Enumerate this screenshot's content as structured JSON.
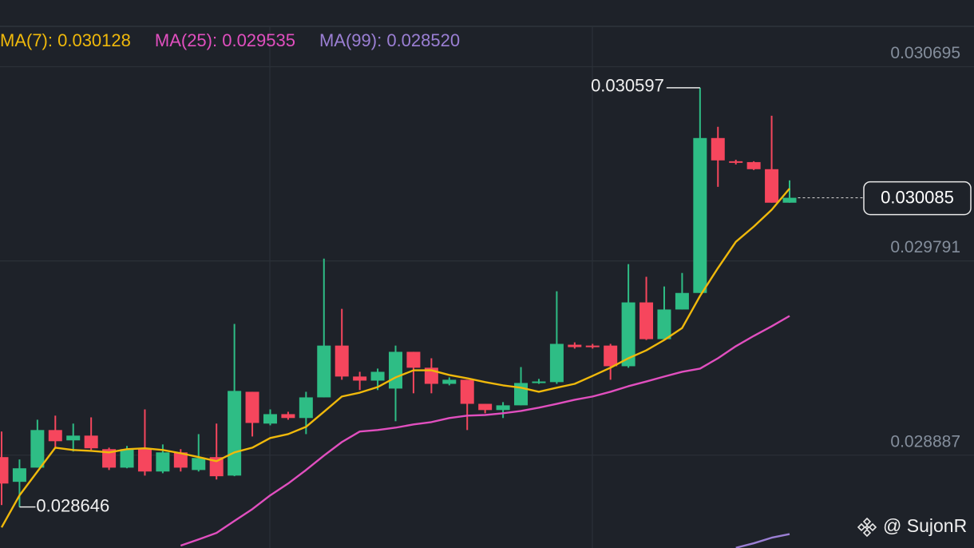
{
  "chart_data": {
    "type": "candlestick",
    "background": "#1e2229",
    "ylim": [
      0.028455,
      0.030879
    ],
    "yticks": [
      0.030695,
      0.029791,
      0.028887
    ],
    "grid": true,
    "candles": {
      "up_color": "#2ebd85",
      "down_color": "#f6465d",
      "open": [
        0.028878,
        0.028763,
        0.028829,
        0.029004,
        0.028956,
        0.028978,
        0.028915,
        0.028829,
        0.028915,
        0.028811,
        0.0289,
        0.028818,
        0.028878,
        0.028792,
        0.029182,
        0.029034,
        0.029078,
        0.02906,
        0.029156,
        0.029397,
        0.029253,
        0.029234,
        0.029197,
        0.029368,
        0.029294,
        0.029219,
        0.029238,
        0.029126,
        0.029097,
        0.029119,
        0.029223,
        0.029227,
        0.029401,
        0.029397,
        0.029397,
        0.029301,
        0.029598,
        0.029427,
        0.029565,
        0.029642,
        0.030363,
        0.030255,
        0.030251,
        0.030218,
        0.030062
      ],
      "high": [
        0.028997,
        0.028867,
        0.029052,
        0.029071,
        0.029034,
        0.029063,
        0.028922,
        0.02893,
        0.0291,
        0.028937,
        0.028915,
        0.028985,
        0.029034,
        0.029498,
        0.029182,
        0.0291,
        0.029089,
        0.029182,
        0.029802,
        0.029568,
        0.029275,
        0.02929,
        0.029397,
        0.029368,
        0.029338,
        0.029249,
        0.029238,
        0.029126,
        0.029134,
        0.029297,
        0.029242,
        0.02965,
        0.029412,
        0.029405,
        0.029405,
        0.029776,
        0.029717,
        0.029672,
        0.029735,
        0.030597,
        0.030415,
        0.030262,
        0.030255,
        0.030467,
        0.030166
      ],
      "low": [
        0.028655,
        0.028646,
        0.028829,
        0.028922,
        0.028904,
        0.028911,
        0.028818,
        0.028826,
        0.028792,
        0.028803,
        0.028811,
        0.028811,
        0.028774,
        0.028789,
        0.028974,
        0.029026,
        0.029052,
        0.028985,
        0.029156,
        0.029238,
        0.02919,
        0.02919,
        0.029045,
        0.029175,
        0.029175,
        0.029212,
        0.029004,
        0.029082,
        0.02906,
        0.029119,
        0.029219,
        0.029219,
        0.029383,
        0.029383,
        0.029238,
        0.029294,
        0.029423,
        0.029427,
        0.029565,
        0.029642,
        0.030136,
        0.03024,
        0.030214,
        0.030062,
        0.030062
      ],
      "close": [
        0.028755,
        0.028826,
        0.029004,
        0.028952,
        0.028978,
        0.028919,
        0.028829,
        0.028915,
        0.028811,
        0.0289,
        0.028829,
        0.028874,
        0.028789,
        0.029186,
        0.029037,
        0.029078,
        0.02906,
        0.029156,
        0.029397,
        0.029253,
        0.029234,
        0.029275,
        0.029368,
        0.029294,
        0.029219,
        0.029238,
        0.029126,
        0.029097,
        0.029119,
        0.029223,
        0.02923,
        0.029405,
        0.02939,
        0.02939,
        0.029301,
        0.029598,
        0.029427,
        0.029565,
        0.029642,
        0.030363,
        0.030259,
        0.030248,
        0.030218,
        0.030062,
        0.030085
      ]
    },
    "series": [
      {
        "name": "MA(7): 0.030128",
        "type": "line",
        "color": "#f0b90b",
        "values": [
          0.028551,
          0.0287,
          0.028811,
          0.028922,
          0.028911,
          0.028907,
          0.0289,
          0.028915,
          0.028919,
          0.028911,
          0.028896,
          0.028878,
          0.028859,
          0.0289,
          0.028922,
          0.028967,
          0.028985,
          0.029019,
          0.029089,
          0.02916,
          0.029178,
          0.029204,
          0.029249,
          0.029282,
          0.029282,
          0.02926,
          0.029245,
          0.029227,
          0.029212,
          0.029201,
          0.029182,
          0.029201,
          0.029219,
          0.029256,
          0.029294,
          0.029338,
          0.029375,
          0.029423,
          0.029479,
          0.029628,
          0.029758,
          0.02988,
          0.029951,
          0.030029,
          0.030128
        ]
      },
      {
        "name": "MA(25): 0.029535",
        "type": "line",
        "color": "#e14fbf",
        "values": [
          null,
          null,
          null,
          null,
          null,
          null,
          null,
          null,
          null,
          null,
          0.028466,
          0.028495,
          0.028525,
          0.028581,
          0.028636,
          0.0287,
          0.028755,
          0.028818,
          0.028885,
          0.028948,
          0.028997,
          0.029004,
          0.029015,
          0.02903,
          0.029041,
          0.02906,
          0.029071,
          0.029074,
          0.029082,
          0.029093,
          0.029108,
          0.029126,
          0.029145,
          0.02916,
          0.029182,
          0.029208,
          0.02923,
          0.029253,
          0.029275,
          0.02929,
          0.029338,
          0.029394,
          0.029442,
          0.029487,
          0.029535
        ]
      },
      {
        "name": "MA(99): 0.028520",
        "type": "line",
        "color": "#9b7fd4",
        "values": [
          null,
          null,
          null,
          null,
          null,
          null,
          null,
          null,
          null,
          null,
          null,
          null,
          null,
          null,
          null,
          null,
          null,
          null,
          null,
          null,
          null,
          null,
          null,
          null,
          null,
          null,
          null,
          null,
          null,
          null,
          null,
          null,
          null,
          null,
          null,
          null,
          null,
          null,
          null,
          null,
          null,
          0.028456,
          0.028477,
          0.028503,
          0.02852
        ]
      }
    ],
    "watermark": "@ SujonR"
  }
}
